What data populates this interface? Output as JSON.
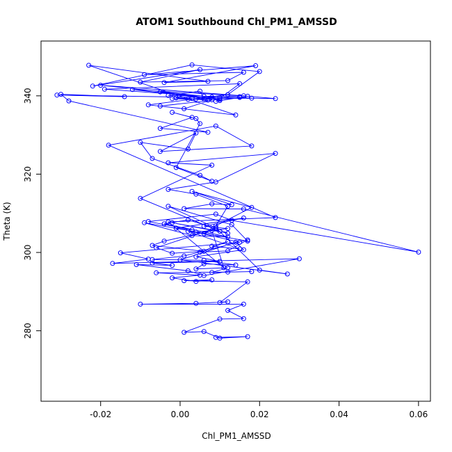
{
  "chart_data": {
    "type": "line",
    "title": "ATOM1 Southbound Chl_PM1_AMSSD",
    "xlabel": "Chl_PM1_AMSSD",
    "ylabel": "Theta (K)",
    "xlim": [
      -0.035,
      0.063
    ],
    "ylim": [
      262,
      354
    ],
    "xticks": [
      -0.02,
      0.0,
      0.02,
      0.04,
      0.06
    ],
    "xtick_labels": [
      "-0.02",
      "0.00",
      "0.02",
      "0.04",
      "0.06"
    ],
    "yticks": [
      280,
      300,
      320,
      340
    ],
    "ytick_labels": [
      "280",
      "300",
      "320",
      "340"
    ],
    "grid": false,
    "series_color": "#0000ff",
    "series": [
      {
        "x": [
          0.009,
          0.017,
          0.01,
          0.006,
          0.001,
          0.01,
          0.016,
          0.012,
          0.016,
          -0.01,
          0.004,
          0.012,
          0.01,
          0.017,
          0.001,
          0.008,
          0.004,
          -0.002,
          0.005,
          -0.006,
          0.012,
          0.018,
          0.008,
          0.012,
          0.004,
          0.006,
          0.014,
          0.006,
          -0.007,
          0.001,
          0.017,
          0.012,
          0.005,
          0.012,
          0.008,
          0.015,
          0.002,
          0.006,
          0.009,
          0.02,
          0.027,
          0.0,
          0.014,
          0.016,
          0.004,
          0.01,
          -0.007,
          -0.002,
          -0.011,
          0.002,
          0.006,
          0.03,
          -0.017,
          -0.008,
          -0.015,
          0.015,
          0.004,
          0.012,
          0.006,
          0.016,
          -0.001,
          0.003,
          -0.008,
          0.009,
          0.013,
          0.06,
          0.016,
          0.001,
          0.008,
          0.013,
          0.003,
          0.018,
          0.009,
          0.012,
          0.004,
          -0.003,
          0.009,
          0.024,
          -0.003,
          0.008,
          -0.01,
          0.01,
          -0.002,
          0.012,
          -0.003,
          0.013,
          0.017,
          -0.009,
          0.003,
          0.012,
          -0.004,
          0.002,
          0.009,
          -0.006,
          -0.002,
          0.006,
          -0.007,
          -0.004,
          0.008,
          0.011,
          -0.003,
          0.024,
          -0.018,
          0.009,
          0.018,
          -0.005,
          0.004,
          0.002,
          -0.01,
          -0.007,
          0.005,
          0.008,
          -0.001,
          0.005,
          0.004,
          -0.002,
          0.003,
          -0.005,
          0.007,
          -0.028,
          -0.03,
          -0.014,
          -0.031,
          0.024,
          0.016,
          -0.02,
          0.006,
          -0.019,
          0.015,
          0.009,
          0.017,
          -0.012,
          0.01,
          -0.005,
          0.014,
          -0.023,
          0.007,
          -0.004,
          0.019,
          -0.009,
          0.016,
          0.012,
          -0.01,
          0.005,
          -0.022,
          0.003,
          0.02,
          0.012,
          -0.008,
          0.001,
          0.008,
          -0.005,
          0.01,
          0.015,
          -0.003,
          0.005,
          0.006,
          -0.002,
          0.002,
          0.008,
          0.01,
          0.015,
          0.018,
          0.004,
          0.007,
          -0.001,
          0.003
        ],
        "y": [
          278.3,
          278.5,
          278.1,
          279.8,
          279.6,
          283.0,
          283.1,
          285.2,
          286.8,
          286.8,
          287.0,
          287.4,
          287.2,
          292.5,
          292.8,
          293.0,
          292.6,
          293.5,
          294.2,
          294.8,
          295.0,
          295.1,
          294.9,
          296.1,
          295.8,
          297.1,
          296.8,
          298.0,
          298.2,
          299.1,
          303.2,
          300.4,
          300.1,
          302.8,
          301.6,
          300.9,
          305.4,
          304.8,
          306.3,
          295.5,
          294.5,
          298.1,
          302.6,
          300.7,
          298.9,
          297.7,
          297.3,
          296.7,
          296.9,
          295.3,
          294.1,
          298.4,
          297.2,
          298.3,
          299.9,
          302.6,
          305.2,
          306.1,
          306.7,
          308.8,
          306.2,
          305.8,
          307.9,
          309.8,
          308.2,
          300.1,
          311.1,
          311.2,
          312.4,
          312.2,
          315.6,
          311.5,
          306.8,
          311.8,
          314.9,
          316.1,
          318.0,
          325.3,
          322.9,
          322.3,
          313.8,
          305.4,
          307.6,
          304.9,
          311.8,
          307.1,
          302.9,
          307.6,
          304.3,
          304.0,
          307.3,
          308.3,
          306.2,
          301.2,
          299.8,
          300.3,
          301.8,
          302.9,
          305.6,
          296.1,
          307.8,
          308.9,
          327.4,
          332.3,
          327.2,
          325.8,
          330.5,
          326.4,
          328.1,
          324.0,
          319.7,
          318.2,
          321.7,
          332.9,
          334.2,
          335.8,
          334.5,
          331.7,
          330.7,
          338.7,
          340.4,
          339.8,
          340.2,
          339.3,
          340.0,
          342.7,
          339.9,
          341.7,
          343.1,
          338.6,
          339.9,
          341.6,
          339.1,
          337.4,
          335.1,
          347.8,
          343.7,
          343.4,
          347.7,
          345.4,
          346.0,
          343.9,
          343.5,
          346.7,
          342.5,
          347.9,
          346.2,
          340.3,
          337.7,
          336.7,
          339.0,
          341.0,
          339.5,
          339.8,
          340.1,
          341.2,
          339.2,
          339.3,
          339.1,
          339.7,
          338.8,
          339.6,
          339.4,
          339.2,
          338.9,
          339.5,
          339.3
        ]
      }
    ]
  }
}
